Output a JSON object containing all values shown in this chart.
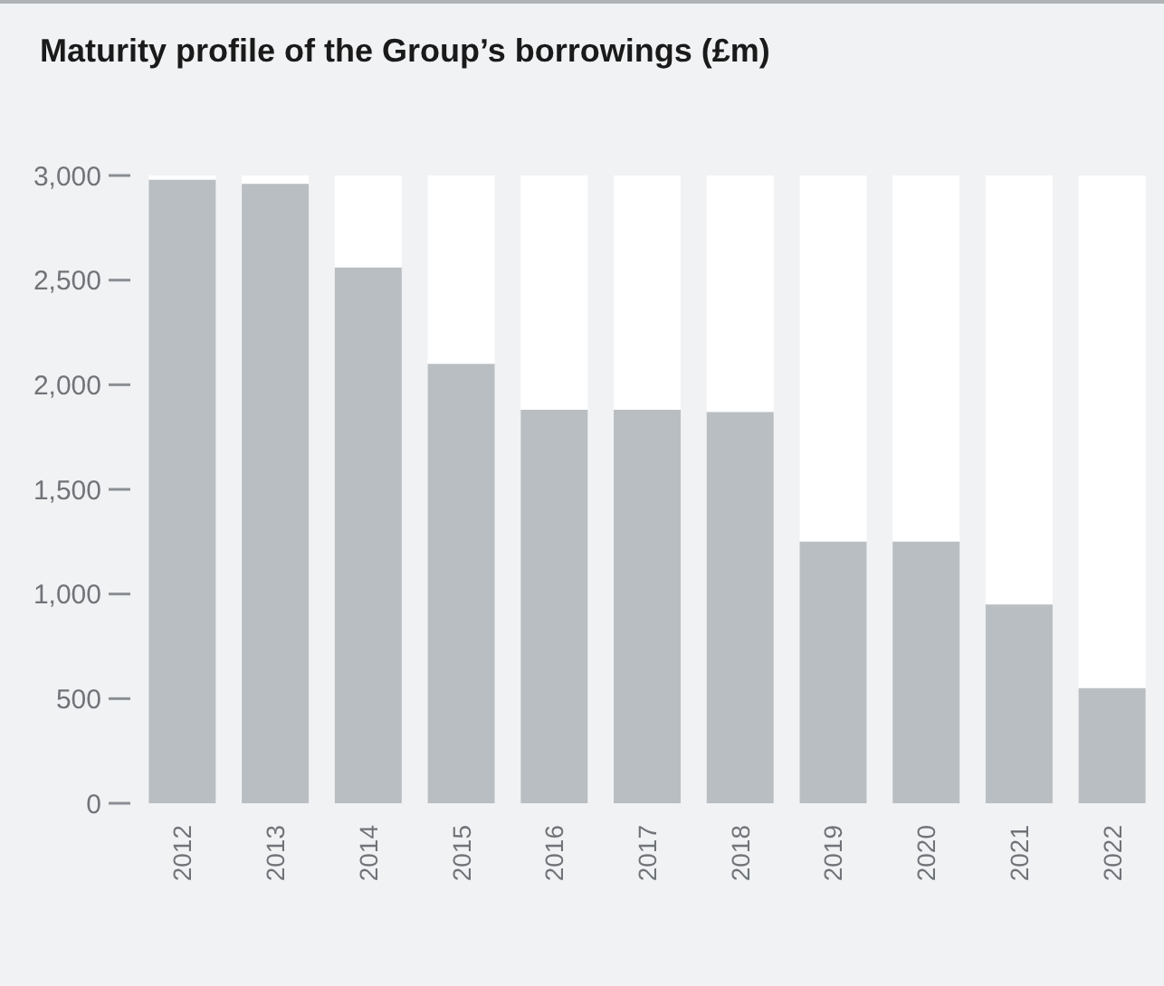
{
  "chart_data": {
    "type": "bar",
    "title": "Maturity profile of the Group’s borrowings (£m)",
    "categories": [
      "2012",
      "2013",
      "2014",
      "2015",
      "2016",
      "2017",
      "2018",
      "2019",
      "2020",
      "2021",
      "2022"
    ],
    "values": [
      2980,
      2960,
      2560,
      2100,
      1880,
      1880,
      1870,
      1250,
      1250,
      950,
      550
    ],
    "color": "#b9bec2",
    "ylim": [
      0,
      3000
    ],
    "yticks": [
      {
        "value": 0,
        "label": "0"
      },
      {
        "value": 500,
        "label": "500"
      },
      {
        "value": 1000,
        "label": "1,000"
      },
      {
        "value": 1500,
        "label": "1,500"
      },
      {
        "value": 2000,
        "label": "2,000"
      },
      {
        "value": 2500,
        "label": "2,500"
      },
      {
        "value": 3000,
        "label": "3,000"
      }
    ],
    "grid": false
  }
}
